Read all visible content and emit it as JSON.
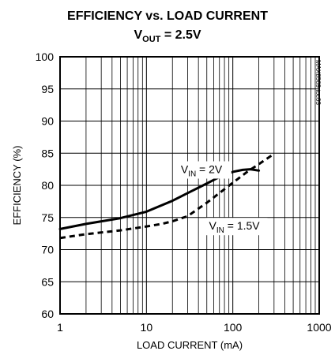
{
  "chart_data": {
    "type": "line",
    "title": "EFFICIENCY vs. LOAD CURRENT",
    "subtitle": {
      "prefix": "V",
      "sub": "OUT",
      "suffix": " = 2.5V"
    },
    "xlabel": "LOAD CURRENT (mA)",
    "ylabel": "EFFICIENCY (%)",
    "x_scale": "log",
    "xlim": [
      1,
      1000
    ],
    "ylim": [
      60,
      100
    ],
    "x_ticks": [
      1,
      10,
      100,
      1000
    ],
    "x_tick_labels": [
      "1",
      "10",
      "100",
      "1000"
    ],
    "y_ticks": [
      60,
      65,
      70,
      75,
      80,
      85,
      90,
      95,
      100
    ],
    "y_tick_labels": [
      "60",
      "65",
      "70",
      "75",
      "80",
      "85",
      "90",
      "95",
      "100"
    ],
    "grid": true,
    "part_number": "MAX8569 toc03",
    "series": [
      {
        "name": "VIN = 2V",
        "label": {
          "prefix": "V",
          "sub": "IN",
          "suffix": " = 2V"
        },
        "style": "solid",
        "x": [
          1,
          2,
          5,
          10,
          20,
          30,
          50,
          70,
          100,
          130,
          160,
          200
        ],
        "y": [
          73.2,
          74.0,
          74.9,
          75.9,
          77.6,
          78.8,
          80.3,
          81.3,
          82.1,
          82.4,
          82.5,
          82.3
        ]
      },
      {
        "name": "VIN = 1.5V",
        "label": {
          "prefix": "V",
          "sub": "IN",
          "suffix": " = 1.5V"
        },
        "style": "dashed",
        "x": [
          1,
          2,
          5,
          10,
          15,
          20,
          30,
          50,
          70,
          100,
          150,
          200,
          300
        ],
        "y": [
          71.8,
          72.4,
          73.0,
          73.6,
          74.0,
          74.4,
          75.2,
          77.3,
          78.8,
          80.4,
          82.2,
          83.3,
          84.9
        ]
      }
    ]
  }
}
